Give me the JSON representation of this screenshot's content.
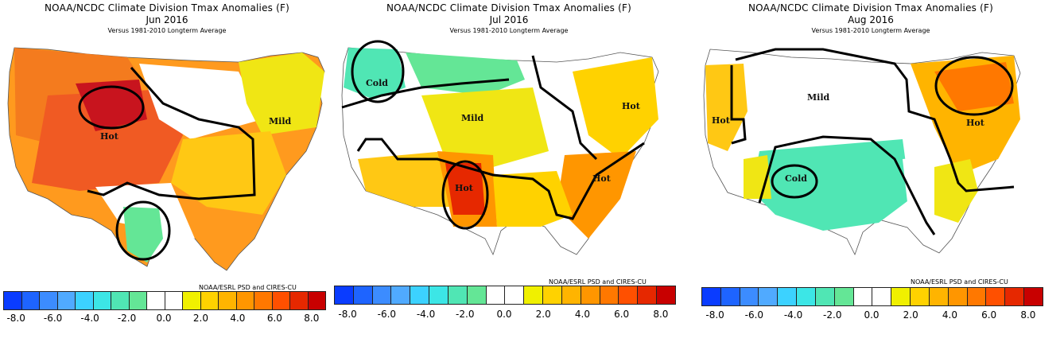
{
  "panels": [
    {
      "title": "NOAA/NCDC Climate Division Tmax Anomalies (F)",
      "month": "Jun 2016",
      "subtitle": "Versus 1981-2010 Longterm Average",
      "credit": "NOAA/ESRL PSD and CIRES-CU",
      "labels": [
        "Hot",
        "Mild"
      ]
    },
    {
      "title": "NOAA/NCDC Climate Division Tmax Anomalies (F)",
      "month": "Jul 2016",
      "subtitle": "Versus 1981-2010 Longterm Average",
      "credit": "NOAA/ESRL PSD and CIRES-CU",
      "labels": [
        "Cold",
        "Mild",
        "Hot",
        "Hot",
        "Hot"
      ]
    },
    {
      "title": "NOAA/NCDC Climate Division Tmax Anomalies (F)",
      "month": "Aug 2016",
      "subtitle": "Versus 1981-2010 Longterm Average",
      "credit": "NOAA/ESRL PSD and CIRES-CU",
      "labels": [
        "Mild",
        "Hot",
        "Hot",
        "Cold"
      ]
    }
  ],
  "scale": {
    "ticks": [
      "-8.0",
      "-6.0",
      "-4.0",
      "-2.0",
      "0.0",
      "2.0",
      "4.0",
      "6.0",
      "8.0"
    ],
    "colors": [
      "#0a3cff",
      "#1e64ff",
      "#3c8cff",
      "#50aaff",
      "#3cd2ff",
      "#3ce6e6",
      "#50e6b4",
      "#64e696",
      "#ffffff",
      "#ffffff",
      "#f0f000",
      "#ffd200",
      "#ffb400",
      "#ff9600",
      "#ff7800",
      "#ff5000",
      "#e62800",
      "#c80000"
    ]
  }
}
